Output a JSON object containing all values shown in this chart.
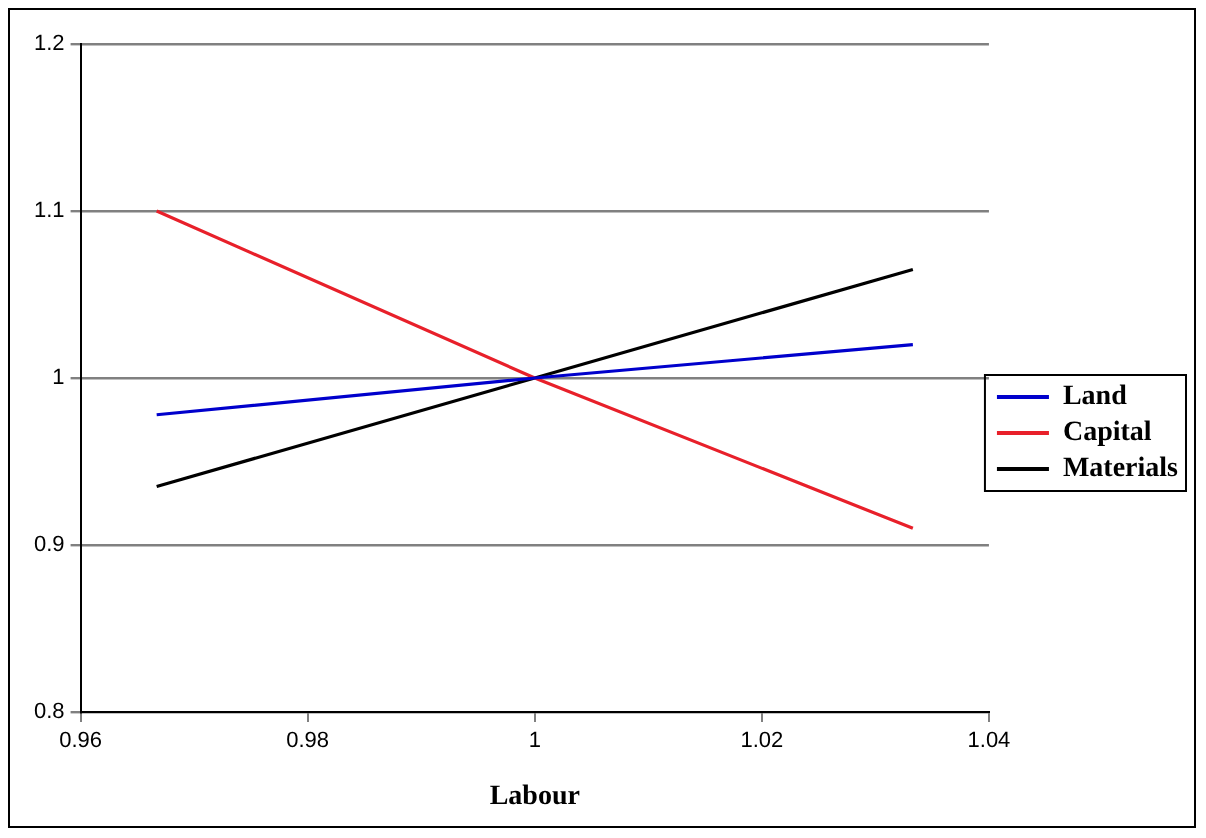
{
  "chart_data": {
    "type": "line",
    "xlabel": "Labour",
    "xlim": [
      0.96,
      1.04
    ],
    "xticks": [
      0.96,
      0.98,
      1,
      1.02,
      1.04
    ],
    "ylim": [
      0.8,
      1.2
    ],
    "yticks": [
      0.8,
      0.9,
      1,
      1.1,
      1.2
    ],
    "grid": "y",
    "legend": "right",
    "marker": "none",
    "line_style": "solid",
    "x": [
      0.9667,
      1,
      1.0333
    ],
    "series": [
      {
        "name": "Land",
        "color": "#0000cc",
        "values": [
          0.978,
          1,
          1.02
        ]
      },
      {
        "name": "Capital",
        "color": "#e8202a",
        "values": [
          1.1,
          1,
          0.91
        ]
      },
      {
        "name": "Materials",
        "color": "#000000",
        "values": [
          0.935,
          1,
          1.065
        ]
      }
    ]
  }
}
